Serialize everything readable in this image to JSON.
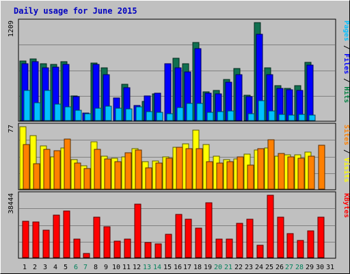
{
  "chart_data": {
    "type": "bar",
    "title": "Daily usage for June 2015",
    "days": [
      "1",
      "2",
      "3",
      "4",
      "5",
      "6",
      "7",
      "8",
      "9",
      "10",
      "11",
      "12",
      "13",
      "14",
      "15",
      "16",
      "17",
      "18",
      "19",
      "20",
      "21",
      "22",
      "23",
      "24",
      "25",
      "26",
      "27",
      "28",
      "29",
      "30",
      "31"
    ],
    "weekend_days": [
      "6",
      "7",
      "13",
      "14",
      "20",
      "21",
      "27",
      "28"
    ],
    "panels": [
      {
        "name": "hits-files-pages",
        "ymax_label": "1209",
        "ylim": [
          0,
          1209
        ],
        "right_label": [
          {
            "text": "Pages",
            "color": "#00c0ff"
          },
          {
            "text": " / ",
            "color": "#000000"
          },
          {
            "text": "Files",
            "color": "#0000ff"
          },
          {
            "text": " / ",
            "color": "#000000"
          },
          {
            "text": "Hits",
            "color": "#008040"
          }
        ],
        "series": [
          {
            "name": "Hits",
            "color": "#107050",
            "values": [
              736,
              765,
              701,
              692,
              723,
              301,
              0,
              706,
              653,
              0,
              451,
              0,
              240,
              326,
              0,
              768,
              705,
              962,
              351,
              368,
              504,
              640,
              316,
              1209,
              648,
              434,
              396,
              433,
              720,
              0,
              0
            ]
          },
          {
            "name": "Files",
            "color": "#0000ff",
            "values": [
              705,
              730,
              651,
              661,
              693,
              297,
              94,
              695,
              570,
              280,
              403,
              188,
              302,
              335,
              703,
              649,
              604,
              888,
              337,
              327,
              472,
              570,
              295,
              1062,
              565,
              394,
              381,
              372,
              682,
              0,
              0
            ]
          },
          {
            "name": "Pages",
            "color": "#00c0ff",
            "values": [
              369,
              216,
              369,
              199,
              167,
              130,
              81,
              156,
              179,
              153,
              147,
              170,
              106,
              105,
              82,
              158,
              208,
              208,
              101,
              109,
              115,
              0,
              87,
              247,
              117,
              76,
              71,
              72,
              71,
              0,
              0
            ]
          }
        ]
      },
      {
        "name": "visits-sites",
        "ymax_label": "77",
        "ylim": [
          0,
          77
        ],
        "right_label": [
          {
            "text": "Sites",
            "color": "#ff8000"
          },
          {
            "text": " / ",
            "color": "#000000"
          },
          {
            "text": "Visits",
            "color": "#ffff00"
          }
        ],
        "series": [
          {
            "name": "Visits",
            "color": "#ffff00",
            "values": [
              77,
              66,
              53,
              40,
              51,
              36,
              29,
              58,
              41,
              38,
              40,
              50,
              34,
              35,
              40,
              52,
              56,
              73,
              55,
              41,
              36,
              37,
              43,
              48,
              51,
              41,
              42,
              42,
              46,
              0,
              0
            ]
          },
          {
            "name": "Sites",
            "color": "#ff8000",
            "values": [
              55,
              31,
              49,
              47,
              62,
              32,
              25,
              49,
              37,
              34,
              45,
              48,
              26,
              32,
              38,
              52,
              50,
              50,
              34,
              32,
              34,
              40,
              30,
              50,
              61,
              44,
              40,
              38,
              41,
              54,
              0
            ]
          }
        ]
      },
      {
        "name": "kbytes",
        "ymax_label": "38444",
        "ylim": [
          0,
          38444
        ],
        "right_label": [
          {
            "text": "KBytes",
            "color": "#ff0000"
          }
        ],
        "series": [
          {
            "name": "KBytes",
            "color": "#ff0000",
            "values": [
              22600,
              22000,
              17100,
              26000,
              28900,
              11300,
              2700,
              25100,
              18800,
              10300,
              11300,
              32800,
              9100,
              8400,
              14300,
              26600,
              23600,
              18200,
              34000,
              11200,
              11200,
              21100,
              23600,
              7600,
              38444,
              25100,
              14700,
              10400,
              16500,
              25100,
              0
            ]
          }
        ]
      }
    ]
  }
}
